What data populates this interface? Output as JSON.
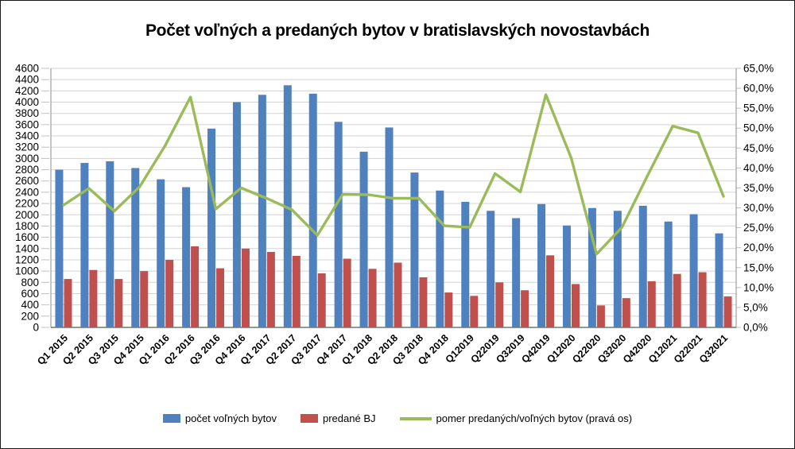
{
  "figure": {
    "title": "Počet voľných a predaných bytov v bratislavských novostavbách"
  },
  "chart_data": {
    "type": "combo-bar-line",
    "title": "Počet voľných a predaných bytov v bratislavských novostavbách",
    "grid": true,
    "legend_position": "bottom",
    "categories": [
      "Q1 2015",
      "Q2 2015",
      "Q3 2015",
      "Q4 2015",
      "Q1 2016",
      "Q2 2016",
      "Q3 2016",
      "Q4 2016",
      "Q1 2017",
      "Q2 2017",
      "Q3 2017",
      "Q4 2017",
      "Q1 2018",
      "Q2 2018",
      "Q3 2018",
      "Q4 2018",
      "Q12019",
      "Q22019",
      "Q32019",
      "Q42019",
      "Q12020",
      "Q22020",
      "Q32020",
      "Q42020",
      "Q12021",
      "Q22021",
      "Q32021"
    ],
    "series": [
      {
        "name": "počet voľných bytov",
        "type": "bar",
        "axis": "left",
        "color": "#4E81BD",
        "values": [
          2800,
          2920,
          2950,
          2830,
          2630,
          2490,
          3530,
          4000,
          4130,
          4300,
          4150,
          3650,
          3120,
          3550,
          2750,
          2430,
          2230,
          2070,
          1940,
          2190,
          1810,
          2120,
          2070,
          2160,
          1880,
          2010,
          1670
        ]
      },
      {
        "name": "predané BJ",
        "type": "bar",
        "axis": "left",
        "color": "#C0504D",
        "values": [
          860,
          1020,
          860,
          1000,
          1200,
          1440,
          1050,
          1400,
          1340,
          1270,
          960,
          1220,
          1040,
          1150,
          890,
          620,
          560,
          800,
          660,
          1280,
          770,
          390,
          520,
          820,
          950,
          980,
          550
        ]
      },
      {
        "name": "pomer predaných/voľných bytov (pravá os)",
        "type": "line",
        "axis": "right",
        "color": "#9BBB59",
        "values": [
          30.7,
          34.9,
          29.2,
          35.3,
          45.6,
          57.8,
          29.7,
          35.0,
          32.4,
          29.5,
          23.1,
          33.4,
          33.3,
          32.4,
          32.4,
          25.5,
          25.1,
          38.6,
          34.0,
          58.4,
          42.5,
          18.4,
          25.1,
          38.0,
          50.5,
          48.8,
          32.9
        ]
      }
    ],
    "left_axis": {
      "min": 0,
      "max": 4600,
      "step": 200
    },
    "right_axis": {
      "min": 0,
      "max": 65,
      "step": 5,
      "decimal_separator": ",",
      "suffix": ",0%"
    },
    "colors": {
      "gridline": "#d3d3d3",
      "tick": "#c0c0c0",
      "axis_line": "#8c8c8c",
      "bottom_axis": "#595959",
      "text": "#000000"
    }
  }
}
